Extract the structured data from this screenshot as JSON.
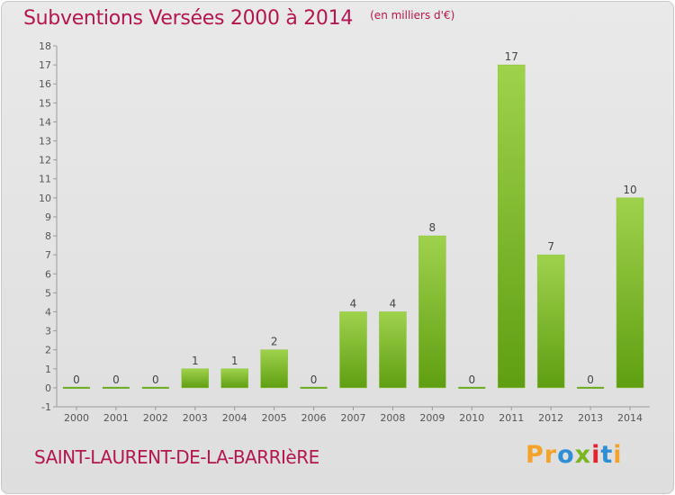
{
  "header": {
    "title": "Subventions Versées 2000 à 2014",
    "subtitle": "(en milliers d'€)"
  },
  "footer": {
    "commune": "SAINT-LAURENT-DE-LA-BARRIèRE",
    "logo": [
      "Pr",
      "o",
      "x",
      "i",
      "t",
      "i"
    ]
  },
  "colors": {
    "accent": "#b4164f",
    "bar_light": "#9fd24b",
    "bar_dark": "#5f9e12"
  },
  "chart_data": {
    "type": "bar",
    "categories": [
      "2000",
      "2001",
      "2002",
      "2003",
      "2004",
      "2005",
      "2006",
      "2007",
      "2008",
      "2009",
      "2010",
      "2011",
      "2012",
      "2013",
      "2014"
    ],
    "values": [
      0,
      0,
      0,
      1,
      1,
      2,
      0,
      4,
      4,
      8,
      0,
      17,
      7,
      0,
      10
    ],
    "data_labels": [
      "0",
      "0",
      "0",
      "1",
      "1",
      "2",
      "0",
      "4",
      "4",
      "8",
      "0",
      "17",
      "7",
      "0",
      "10"
    ],
    "title": "Subventions Versées 2000 à 2014",
    "ylabel": "",
    "xlabel": "",
    "ylim": [
      -1,
      18
    ],
    "yticks": [
      -1,
      0,
      1,
      2,
      3,
      4,
      5,
      6,
      7,
      8,
      9,
      10,
      11,
      12,
      13,
      14,
      15,
      16,
      17,
      18
    ],
    "grid": false,
    "legend": "none"
  }
}
